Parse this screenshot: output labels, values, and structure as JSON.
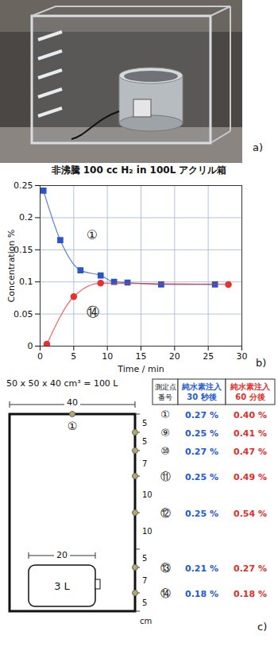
{
  "panel_letters": [
    "a)",
    "b)",
    "c)"
  ],
  "chart_data": {
    "type": "line",
    "title": "非沸騰 100 cc H₂ in 100L アクリル箱",
    "x_label": "Time / min",
    "y_label": "Concentration %",
    "xlim": [
      0,
      30
    ],
    "xticks": [
      0,
      5,
      10,
      15,
      20,
      25,
      30
    ],
    "ylim": [
      0,
      0.25
    ],
    "yticks": [
      0,
      0.05,
      0.1,
      0.15,
      0.2,
      0.25
    ],
    "grid": true,
    "series": [
      {
        "name": "①",
        "color": "#2a55c8",
        "marker": "square",
        "x": [
          0.5,
          3,
          6,
          9,
          11,
          13,
          18,
          26
        ],
        "values": [
          0.242,
          0.165,
          0.118,
          0.11,
          0.1,
          0.099,
          0.096,
          0.096
        ]
      },
      {
        "name": "⑭",
        "color": "#e8312f",
        "marker": "circle",
        "x": [
          1,
          5,
          9,
          28
        ],
        "values": [
          0.003,
          0.077,
          0.098,
          0.096
        ]
      }
    ]
  },
  "diagram": {
    "title": "50 x 50 x 40 cm³ = 100  L",
    "box_width_label": "40",
    "inner_box": {
      "label": "3 L",
      "width_label": "20"
    },
    "top_point": "①",
    "right_scale": {
      "unit": "cm",
      "segments": [
        {
          "length": 5,
          "point": "⑨"
        },
        {
          "length": 5,
          "point": "⑩"
        },
        {
          "length": 7,
          "point": "⑪"
        },
        {
          "length": 10,
          "point": "⑫"
        },
        {
          "length": 10,
          "point": null
        },
        {
          "length": 5,
          "point": "⑬"
        },
        {
          "length": 7,
          "point": "⑭"
        },
        {
          "length": 5,
          "point": null
        }
      ]
    },
    "table": {
      "header": [
        {
          "lines": [
            "測定点",
            "番号"
          ],
          "color": "#111111"
        },
        {
          "lines": [
            "純水素注入",
            "30 秒後"
          ],
          "color": "#1f5bd0"
        },
        {
          "lines": [
            "純水素注入",
            "60 分後"
          ],
          "color": "#e0302a"
        }
      ],
      "rows": [
        [
          "①",
          "0.27 %",
          "0.40 %"
        ],
        [
          "⑨",
          "0.25 %",
          "0.41 %"
        ],
        [
          "⑩",
          "0.27 %",
          "0.47 %"
        ],
        [
          "⑪",
          "0.25 %",
          "0.49 %"
        ],
        [
          "⑫",
          "0.25 %",
          "0.54 %"
        ],
        [
          "⑬",
          "0.21 %",
          "0.27 %"
        ],
        [
          "⑭",
          "0.18 %",
          "0.18 %"
        ]
      ]
    }
  }
}
